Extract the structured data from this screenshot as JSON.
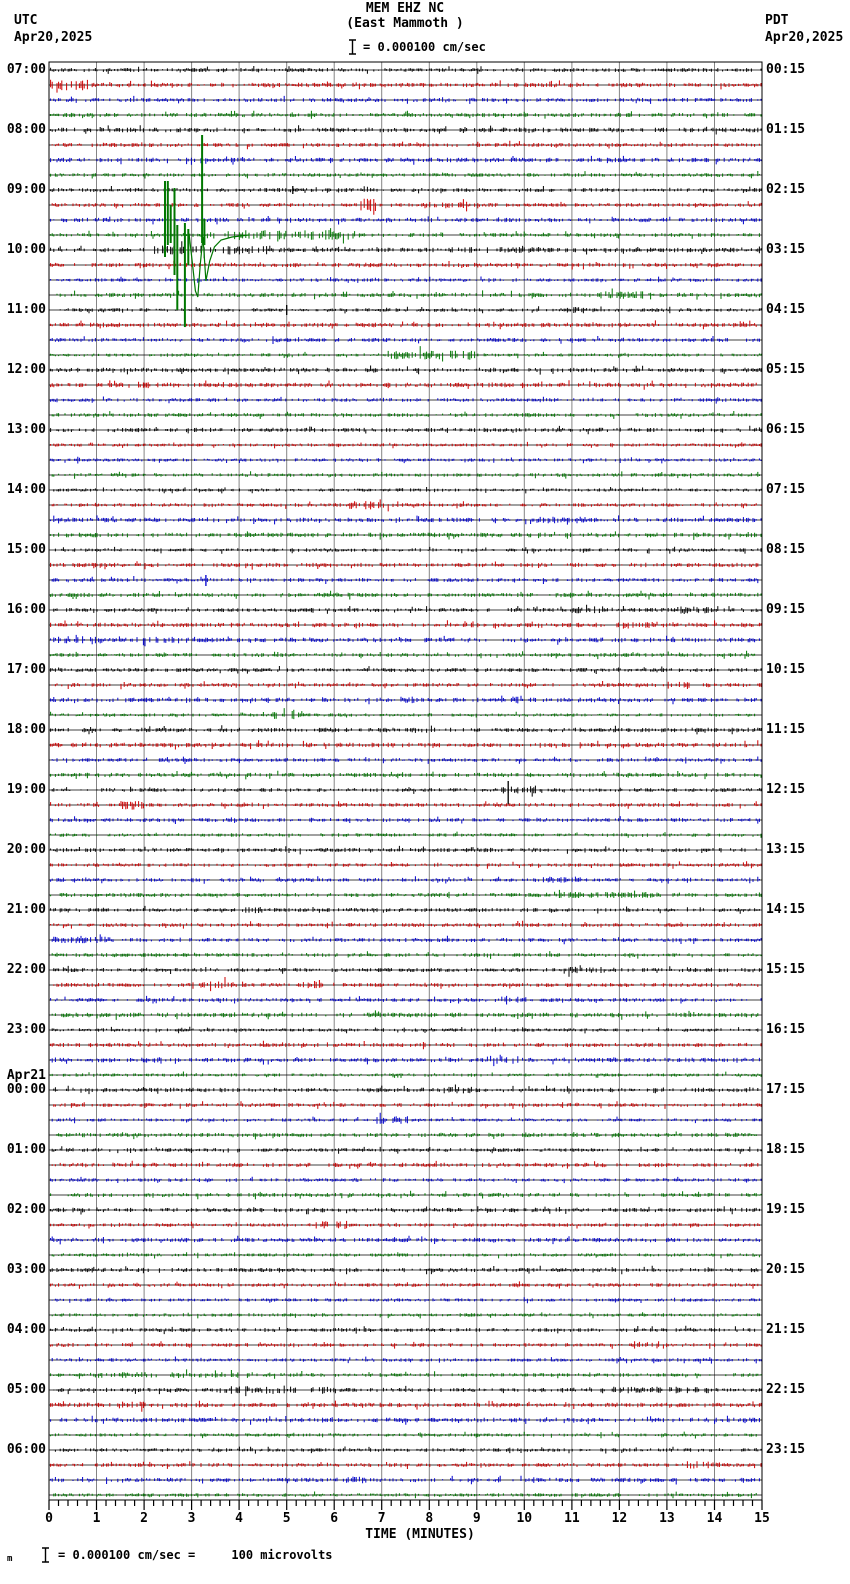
{
  "header": {
    "title": "MEM EHZ NC",
    "subtitle": "(East Mammoth )",
    "scale_label": "= 0.000100 cm/sec",
    "left_tz": "UTC",
    "left_date": "Apr20,2025",
    "right_tz": "PDT",
    "right_date": "Apr20,2025"
  },
  "footer": {
    "axis_label": "TIME (MINUTES)",
    "footnote_prefix": "m",
    "footnote": "= 0.000100 cm/sec =     100 microvolts"
  },
  "colors": {
    "background": "#ffffff",
    "grid": "#848484",
    "border": "#000000",
    "baseline": "#000000",
    "trace_cycle": [
      "#000000",
      "#cc0000",
      "#0000cc",
      "#007700"
    ]
  },
  "chart_data": {
    "type": "line",
    "subtype": "seismogram-helicorder",
    "station": "MEM EHZ NC",
    "station_name": "East Mammoth",
    "rows": 96,
    "minutes_per_row": 15,
    "x_min": 0,
    "x_max": 15,
    "x_major_tick": 1,
    "x_minor_tick": 0.2,
    "grid": "vertical-per-minute",
    "x_tick_labels": [
      "0",
      "1",
      "2",
      "3",
      "4",
      "5",
      "6",
      "7",
      "8",
      "9",
      "10",
      "11",
      "12",
      "13",
      "14",
      "15"
    ],
    "left_labels": [
      {
        "row": 0,
        "label": "07:00"
      },
      {
        "row": 4,
        "label": "08:00"
      },
      {
        "row": 8,
        "label": "09:00"
      },
      {
        "row": 12,
        "label": "10:00"
      },
      {
        "row": 16,
        "label": "11:00"
      },
      {
        "row": 20,
        "label": "12:00"
      },
      {
        "row": 24,
        "label": "13:00"
      },
      {
        "row": 28,
        "label": "14:00"
      },
      {
        "row": 32,
        "label": "15:00"
      },
      {
        "row": 36,
        "label": "16:00"
      },
      {
        "row": 40,
        "label": "17:00"
      },
      {
        "row": 44,
        "label": "18:00"
      },
      {
        "row": 48,
        "label": "19:00"
      },
      {
        "row": 52,
        "label": "20:00"
      },
      {
        "row": 56,
        "label": "21:00"
      },
      {
        "row": 60,
        "label": "22:00"
      },
      {
        "row": 64,
        "label": "23:00"
      },
      {
        "row": 68,
        "label": "00:00"
      },
      {
        "row": 72,
        "label": "01:00"
      },
      {
        "row": 76,
        "label": "02:00"
      },
      {
        "row": 80,
        "label": "03:00"
      },
      {
        "row": 84,
        "label": "04:00"
      },
      {
        "row": 88,
        "label": "05:00"
      },
      {
        "row": 92,
        "label": "06:00"
      }
    ],
    "date_break": {
      "row": 68,
      "label": "Apr21"
    },
    "right_labels": [
      {
        "row": 0,
        "label": "00:15"
      },
      {
        "row": 4,
        "label": "01:15"
      },
      {
        "row": 8,
        "label": "02:15"
      },
      {
        "row": 12,
        "label": "03:15"
      },
      {
        "row": 16,
        "label": "04:15"
      },
      {
        "row": 20,
        "label": "05:15"
      },
      {
        "row": 24,
        "label": "06:15"
      },
      {
        "row": 28,
        "label": "07:15"
      },
      {
        "row": 32,
        "label": "08:15"
      },
      {
        "row": 36,
        "label": "09:15"
      },
      {
        "row": 40,
        "label": "10:15"
      },
      {
        "row": 44,
        "label": "11:15"
      },
      {
        "row": 48,
        "label": "12:15"
      },
      {
        "row": 52,
        "label": "13:15"
      },
      {
        "row": 56,
        "label": "14:15"
      },
      {
        "row": 60,
        "label": "15:15"
      },
      {
        "row": 64,
        "label": "16:15"
      },
      {
        "row": 68,
        "label": "17:15"
      },
      {
        "row": 72,
        "label": "18:15"
      },
      {
        "row": 76,
        "label": "19:15"
      },
      {
        "row": 80,
        "label": "20:15"
      },
      {
        "row": 84,
        "label": "21:15"
      },
      {
        "row": 88,
        "label": "22:15"
      },
      {
        "row": 92,
        "label": "23:15"
      }
    ],
    "noise_bursts": [
      {
        "utc": "07:15",
        "row": 1,
        "start": 0.02,
        "end": 0.9,
        "amp": 2.8
      },
      {
        "utc": "09:15",
        "row": 9,
        "start": 6.55,
        "end": 6.95,
        "amp": 3.4
      },
      {
        "utc": "09:15",
        "row": 9,
        "start": 7.9,
        "end": 8.8,
        "amp": 1.7
      },
      {
        "utc": "09:45",
        "row": 11,
        "start": 3.3,
        "end": 6.5,
        "amp": 2.6
      },
      {
        "utc": "10:00",
        "row": 12,
        "start": 2.0,
        "end": 4.6,
        "amp": 2.4
      },
      {
        "utc": "10:00",
        "row": 12,
        "start": 8.3,
        "end": 10.4,
        "amp": 1.6
      },
      {
        "utc": "10:45",
        "row": 15,
        "start": 11.6,
        "end": 12.6,
        "amp": 2.0
      },
      {
        "utc": "11:00",
        "row": 16,
        "start": 10.9,
        "end": 11.5,
        "amp": 1.6
      },
      {
        "utc": "11:45",
        "row": 19,
        "start": 7.1,
        "end": 9.0,
        "amp": 2.4
      },
      {
        "utc": "12:15",
        "row": 21,
        "start": 1.5,
        "end": 2.2,
        "amp": 1.7
      },
      {
        "utc": "14:15",
        "row": 29,
        "start": 6.3,
        "end": 7.3,
        "amp": 2.2
      },
      {
        "utc": "14:30",
        "row": 30,
        "start": 10.2,
        "end": 11.3,
        "amp": 1.8
      },
      {
        "utc": "16:00",
        "row": 36,
        "start": 11.0,
        "end": 11.9,
        "amp": 1.9
      },
      {
        "utc": "16:00",
        "row": 36,
        "start": 13.2,
        "end": 13.9,
        "amp": 1.9
      },
      {
        "utc": "16:15",
        "row": 37,
        "start": 11.8,
        "end": 12.7,
        "amp": 2.0
      },
      {
        "utc": "16:30",
        "row": 38,
        "start": 0.1,
        "end": 1.2,
        "amp": 2.0
      },
      {
        "utc": "16:30",
        "row": 38,
        "start": 1.8,
        "end": 2.9,
        "amp": 1.8
      },
      {
        "utc": "17:15",
        "row": 41,
        "start": 12.8,
        "end": 13.6,
        "amp": 2.2
      },
      {
        "utc": "17:30",
        "row": 42,
        "start": 7.3,
        "end": 7.7,
        "amp": 1.8
      },
      {
        "utc": "17:30",
        "row": 42,
        "start": 9.6,
        "end": 9.9,
        "amp": 1.8
      },
      {
        "utc": "17:45",
        "row": 43,
        "start": 4.7,
        "end": 5.4,
        "amp": 2.2
      },
      {
        "utc": "19:00",
        "row": 48,
        "start": 9.5,
        "end": 10.3,
        "amp": 1.8
      },
      {
        "utc": "19:15",
        "row": 49,
        "start": 1.4,
        "end": 2.0,
        "amp": 2.4
      },
      {
        "utc": "20:30",
        "row": 54,
        "start": 10.4,
        "end": 11.2,
        "amp": 1.8
      },
      {
        "utc": "20:45",
        "row": 55,
        "start": 10.7,
        "end": 12.8,
        "amp": 1.6
      },
      {
        "utc": "21:00",
        "row": 56,
        "start": 4.0,
        "end": 4.6,
        "amp": 1.8
      },
      {
        "utc": "21:30",
        "row": 58,
        "start": 0.1,
        "end": 1.5,
        "amp": 1.7
      },
      {
        "utc": "22:00",
        "row": 60,
        "start": 10.8,
        "end": 11.7,
        "amp": 1.7
      },
      {
        "utc": "22:15",
        "row": 61,
        "start": 3.0,
        "end": 3.9,
        "amp": 2.0
      },
      {
        "utc": "22:15",
        "row": 61,
        "start": 5.3,
        "end": 6.1,
        "amp": 1.8
      },
      {
        "utc": "22:30",
        "row": 62,
        "start": 9.5,
        "end": 10.1,
        "amp": 1.8
      },
      {
        "utc": "23:30",
        "row": 66,
        "start": 9.2,
        "end": 9.9,
        "amp": 2.2
      },
      {
        "utc": "00:00",
        "row": 68,
        "start": 8.4,
        "end": 8.9,
        "amp": 1.8
      },
      {
        "utc": "00:30",
        "row": 70,
        "start": 6.9,
        "end": 7.6,
        "amp": 2.0
      },
      {
        "utc": "02:15",
        "row": 77,
        "start": 5.6,
        "end": 6.3,
        "amp": 2.2
      },
      {
        "utc": "04:15",
        "row": 85,
        "start": 12.3,
        "end": 13.0,
        "amp": 2.0
      },
      {
        "utc": "04:45",
        "row": 87,
        "start": 1.0,
        "end": 4.5,
        "amp": 1.5
      },
      {
        "utc": "05:00",
        "row": 88,
        "start": 3.5,
        "end": 6.1,
        "amp": 2.0
      },
      {
        "utc": "05:00",
        "row": 88,
        "start": 11.6,
        "end": 13.9,
        "amp": 1.7
      },
      {
        "utc": "05:15",
        "row": 89,
        "start": 1.3,
        "end": 2.1,
        "amp": 1.8
      },
      {
        "utc": "06:15",
        "row": 93,
        "start": 13.4,
        "end": 14.2,
        "amp": 2.0
      },
      {
        "utc": "06:30",
        "row": 94,
        "start": 6.0,
        "end": 6.7,
        "amp": 1.8
      }
    ],
    "spikes": [
      {
        "utc": "09:00",
        "row": 8,
        "min": 5.13,
        "up": 4,
        "down": 4
      },
      {
        "utc": "11:00",
        "row": 16,
        "min": 5.0,
        "up": 5,
        "down": 5
      },
      {
        "utc": "15:30",
        "row": 34,
        "min": 3.3,
        "up": 5,
        "down": 6
      },
      {
        "utc": "19:00",
        "row": 48,
        "min": 9.66,
        "up": 9,
        "down": 14
      }
    ],
    "main_event": {
      "utc": "09:45",
      "row": 11,
      "description": "large clipped earthquake signal, approx minutes 2.4-3.4",
      "segments": [
        {
          "min": 2.44,
          "up": 54,
          "down": 22
        },
        {
          "min": 2.5,
          "up": 54,
          "down": 10
        },
        {
          "min": 2.56,
          "up": 30,
          "down": 8
        },
        {
          "min": 2.64,
          "up": 47,
          "down": 40
        },
        {
          "min": 2.7,
          "up": 10,
          "down": 75
        },
        {
          "min": 2.86,
          "up": 12,
          "down": 92
        },
        {
          "min": 2.93,
          "up": 6,
          "down": 30
        },
        {
          "min": 3.22,
          "up": 100,
          "down": 8
        },
        {
          "min": 3.27,
          "up": 16,
          "down": 10
        }
      ],
      "tail": [
        [
          2.95,
          0
        ],
        [
          3.02,
          30
        ],
        [
          3.08,
          56
        ],
        [
          3.13,
          62
        ],
        [
          3.18,
          30
        ],
        [
          3.24,
          2
        ],
        [
          3.3,
          46
        ],
        [
          3.38,
          26
        ],
        [
          3.48,
          12
        ],
        [
          3.62,
          5
        ],
        [
          3.85,
          2
        ],
        [
          4.2,
          0
        ]
      ]
    }
  }
}
